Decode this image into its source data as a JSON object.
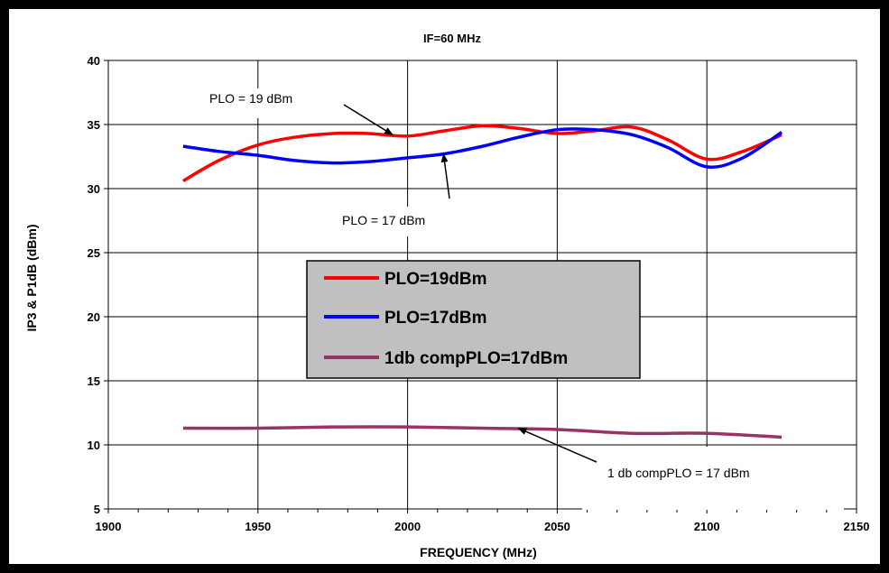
{
  "chart_data": {
    "type": "line",
    "title": "IF=60 MHz",
    "xlabel": "FREQUENCY (MHz)",
    "ylabel": "IP3 & P1dB (dBm)",
    "xlim": [
      1900,
      2150
    ],
    "ylim": [
      5,
      40
    ],
    "xticks": [
      1900,
      1950,
      2000,
      2050,
      2100,
      2150
    ],
    "yticks": [
      5,
      10,
      15,
      20,
      25,
      30,
      35,
      40
    ],
    "grid": true,
    "legend": "center",
    "series": [
      {
        "name": "PLO=19dBm",
        "color": "#ff0000",
        "points": [
          [
            1925,
            30.6
          ],
          [
            1937,
            32.2
          ],
          [
            1950,
            33.4
          ],
          [
            1962,
            34.0
          ],
          [
            1975,
            34.3
          ],
          [
            1987,
            34.3
          ],
          [
            2000,
            34.1
          ],
          [
            2012,
            34.5
          ],
          [
            2025,
            34.9
          ],
          [
            2037,
            34.7
          ],
          [
            2050,
            34.3
          ],
          [
            2062,
            34.5
          ],
          [
            2075,
            34.8
          ],
          [
            2087,
            33.8
          ],
          [
            2100,
            32.3
          ],
          [
            2112,
            32.9
          ],
          [
            2125,
            34.2
          ]
        ]
      },
      {
        "name": "PLO=17dBm",
        "color": "#0000ff",
        "points": [
          [
            1925,
            33.3
          ],
          [
            1937,
            32.9
          ],
          [
            1950,
            32.6
          ],
          [
            1962,
            32.2
          ],
          [
            1975,
            32.0
          ],
          [
            1987,
            32.1
          ],
          [
            2000,
            32.4
          ],
          [
            2012,
            32.7
          ],
          [
            2025,
            33.3
          ],
          [
            2037,
            34.0
          ],
          [
            2050,
            34.6
          ],
          [
            2062,
            34.6
          ],
          [
            2075,
            34.2
          ],
          [
            2087,
            33.2
          ],
          [
            2100,
            31.7
          ],
          [
            2112,
            32.4
          ],
          [
            2125,
            34.4
          ]
        ]
      },
      {
        "name": "1db compPLO=17dBm",
        "color": "#993366",
        "points": [
          [
            1925,
            11.3
          ],
          [
            1950,
            11.3
          ],
          [
            1975,
            11.4
          ],
          [
            2000,
            11.4
          ],
          [
            2025,
            11.3
          ],
          [
            2050,
            11.2
          ],
          [
            2075,
            10.9
          ],
          [
            2100,
            10.9
          ],
          [
            2125,
            10.6
          ]
        ]
      }
    ],
    "annotations": [
      {
        "text": "PLO = 19 dBm",
        "arrow_to": [
          1995,
          34.2
        ]
      },
      {
        "text": "PLO = 17 dBm",
        "arrow_to": [
          2012,
          32.7
        ]
      },
      {
        "text": "1 db compPLO = 17 dBm",
        "arrow_to": [
          2037,
          11.3
        ]
      }
    ]
  }
}
